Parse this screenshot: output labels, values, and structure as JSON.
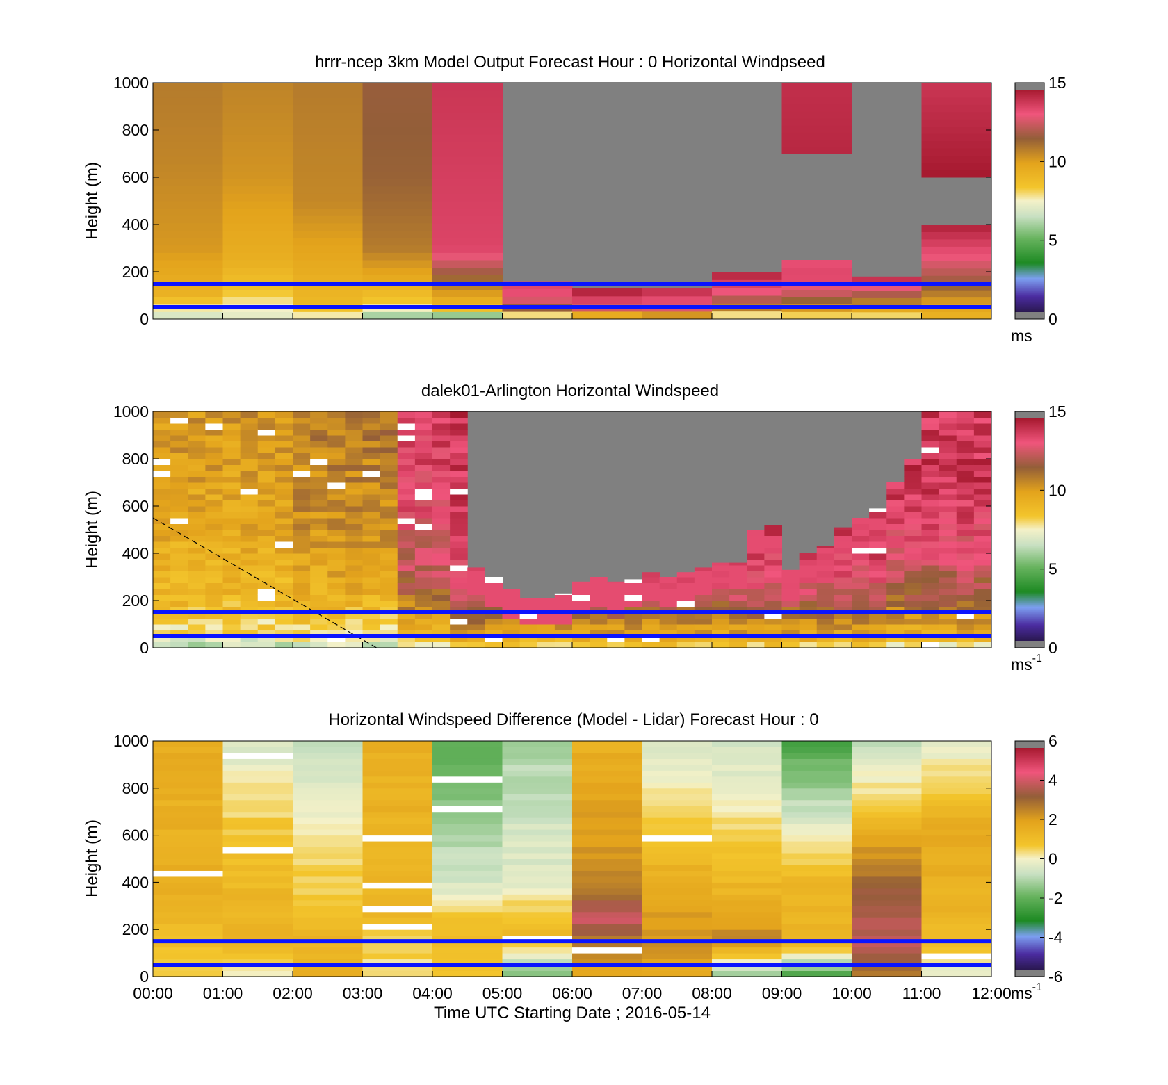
{
  "chart_data": [
    {
      "type": "heatmap",
      "title": "hrrr-ncep 3km Model Output   Forecast Hour : 0 Horizontal Windpseed",
      "ylabel": "Height (m)",
      "xlabel": "",
      "x_range_hours": [
        0,
        12
      ],
      "ylim": [
        0,
        1000
      ],
      "yticks": [
        "0",
        "200",
        "400",
        "600",
        "800",
        "1000"
      ],
      "reference_lines_m": [
        50,
        150
      ],
      "grey_region_rows": [
        {
          "x_from_h": 5,
          "x_to_h": 9,
          "y_from": 160,
          "y_to": 1000
        },
        {
          "x_from_h": 10,
          "x_to_h": 11,
          "y_from": 180,
          "y_to": 1000
        },
        {
          "x_from_h": 11,
          "x_to_h": 12,
          "y_from": 400,
          "y_to": 600
        }
      ],
      "colorbar": {
        "min": 0,
        "max": 15,
        "ticks": [
          "0",
          "5",
          "10",
          "15"
        ],
        "unit": "ms",
        "unit_sup": ""
      },
      "columns": [
        {
          "hour": 0,
          "profile": [
            [
              0,
              6.5
            ],
            [
              40,
              7.5
            ],
            [
              100,
              9.3
            ],
            [
              300,
              10.3
            ],
            [
              700,
              10.8
            ],
            [
              1000,
              11.0
            ]
          ]
        },
        {
          "hour": 1,
          "profile": [
            [
              0,
              7.0
            ],
            [
              60,
              7.6
            ],
            [
              120,
              8.5
            ],
            [
              250,
              9.5
            ],
            [
              600,
              10.4
            ],
            [
              1000,
              10.8
            ]
          ]
        },
        {
          "hour": 2,
          "profile": [
            [
              0,
              7.2
            ],
            [
              60,
              9.0
            ],
            [
              200,
              9.6
            ],
            [
              500,
              10.7
            ],
            [
              1000,
              11.0
            ]
          ]
        },
        {
          "hour": 3,
          "profile": [
            [
              0,
              5.2
            ],
            [
              60,
              8.2
            ],
            [
              150,
              9.5
            ],
            [
              300,
              11.0
            ],
            [
              600,
              11.6
            ],
            [
              1000,
              11.8
            ]
          ]
        },
        {
          "hour": 4,
          "profile": [
            [
              0,
              4.2
            ],
            [
              50,
              9.0
            ],
            [
              200,
              12.0
            ],
            [
              300,
              13.8
            ],
            [
              1000,
              14.2
            ]
          ]
        },
        {
          "hour": 5,
          "profile": [
            [
              0,
              6.0
            ],
            [
              50,
              12.0
            ],
            [
              100,
              13.5
            ],
            [
              160,
              13.8
            ]
          ]
        },
        {
          "hour": 6,
          "profile": [
            [
              0,
              7.6
            ],
            [
              40,
              12.5
            ],
            [
              100,
              14.5
            ],
            [
              130,
              14.8
            ]
          ]
        },
        {
          "hour": 7,
          "profile": [
            [
              0,
              8.7
            ],
            [
              40,
              12.8
            ],
            [
              100,
              14.0
            ],
            [
              130,
              14.5
            ]
          ]
        },
        {
          "hour": 8,
          "profile": [
            [
              0,
              6.0
            ],
            [
              40,
              10.5
            ],
            [
              100,
              13.0
            ],
            [
              200,
              14.8
            ]
          ]
        },
        {
          "hour": 9,
          "profile": [
            [
              0,
              7.0
            ],
            [
              40,
              10.0
            ],
            [
              100,
              12.5
            ],
            [
              180,
              13.8
            ],
            [
              250,
              13.5
            ]
          ]
        },
        {
          "hour": 9,
          "y_from": 700,
          "profile": [
            [
              700,
              14.6
            ],
            [
              1000,
              14.4
            ]
          ]
        },
        {
          "hour": 10,
          "profile": [
            [
              0,
              7.2
            ],
            [
              40,
              9.5
            ],
            [
              100,
              12.0
            ],
            [
              180,
              14.8
            ]
          ]
        },
        {
          "hour": 11,
          "profile": [
            [
              0,
              9.2
            ],
            [
              60,
              10.0
            ],
            [
              150,
              11.8
            ],
            [
              280,
              13.5
            ],
            [
              400,
              14.8
            ]
          ]
        },
        {
          "hour": 11,
          "y_from": 600,
          "profile": [
            [
              600,
              15.0
            ],
            [
              700,
              14.8
            ],
            [
              800,
              14.6
            ],
            [
              1000,
              14.2
            ]
          ]
        }
      ]
    },
    {
      "type": "heatmap",
      "title": "dalek01-Arlington  Horizontal Windspeed",
      "ylabel": "Height (m)",
      "xlabel": "",
      "x_range_hours": [
        0,
        12
      ],
      "ylim": [
        0,
        1000
      ],
      "yticks": [
        "0",
        "200",
        "400",
        "600",
        "800",
        "1000"
      ],
      "reference_lines_m": [
        50,
        150
      ],
      "dashed_line": {
        "from": [
          0,
          550
        ],
        "to": [
          3.2,
          0
        ]
      },
      "colorbar": {
        "min": 0,
        "max": 15,
        "ticks": [
          "0",
          "5",
          "10",
          "15"
        ],
        "unit": "ms",
        "unit_sup": "-1"
      },
      "column_width_hours": 0.25,
      "columns_top": [
        {
          "start_h": 0.0,
          "grey_above": 1000
        },
        {
          "start_h": 4.25,
          "grey_above": 1000
        },
        {
          "start_h": 4.5,
          "grey_above": 340
        },
        {
          "start_h": 4.75,
          "grey_above": 300
        },
        {
          "start_h": 5.0,
          "grey_above": 250
        },
        {
          "start_h": 5.25,
          "grey_above": 210
        },
        {
          "start_h": 5.5,
          "grey_above": 210
        },
        {
          "start_h": 5.75,
          "grey_above": 230
        },
        {
          "start_h": 6.0,
          "grey_above": 280
        },
        {
          "start_h": 6.25,
          "grey_above": 300
        },
        {
          "start_h": 6.5,
          "grey_above": 280
        },
        {
          "start_h": 6.75,
          "grey_above": 290
        },
        {
          "start_h": 7.0,
          "grey_above": 320
        },
        {
          "start_h": 7.25,
          "grey_above": 300
        },
        {
          "start_h": 7.5,
          "grey_above": 320
        },
        {
          "start_h": 7.75,
          "grey_above": 340
        },
        {
          "start_h": 8.0,
          "grey_above": 360
        },
        {
          "start_h": 8.25,
          "grey_above": 360
        },
        {
          "start_h": 8.5,
          "grey_above": 500
        },
        {
          "start_h": 8.75,
          "grey_above": 520
        },
        {
          "start_h": 9.0,
          "grey_above": 330
        },
        {
          "start_h": 9.25,
          "grey_above": 400
        },
        {
          "start_h": 9.5,
          "grey_above": 430
        },
        {
          "start_h": 9.75,
          "grey_above": 510
        },
        {
          "start_h": 10.0,
          "grey_above": 550
        },
        {
          "start_h": 10.25,
          "grey_above": 590
        },
        {
          "start_h": 10.5,
          "grey_above": 700
        },
        {
          "start_h": 10.75,
          "grey_above": 800
        },
        {
          "start_h": 11.0,
          "grey_above": 1000
        }
      ]
    },
    {
      "type": "heatmap",
      "title": "Horizontal Windspeed Difference (Model - Lidar) Forecast Hour : 0",
      "ylabel": "Height (m)",
      "xlabel": "Time UTC  Starting Date ; 2016-05-14",
      "x_range_hours": [
        0,
        12
      ],
      "xticks": [
        "00:00",
        "01:00",
        "02:00",
        "03:00",
        "04:00",
        "05:00",
        "06:00",
        "07:00",
        "08:00",
        "09:00",
        "10:00",
        "11:00",
        "12:00"
      ],
      "ylim": [
        0,
        1000
      ],
      "yticks": [
        "0",
        "200",
        "400",
        "600",
        "800",
        "1000"
      ],
      "reference_lines_m": [
        50,
        150
      ],
      "colorbar": {
        "min": -6,
        "max": 6,
        "ticks": [
          "-6",
          "-4",
          "-2",
          "0",
          "2",
          "4",
          "6"
        ],
        "unit": "ms",
        "unit_sup": "-1"
      },
      "columns": [
        {
          "hour": 0,
          "profile": [
            [
              0,
              0.4
            ],
            [
              150,
              1.0
            ],
            [
              300,
              1.5
            ],
            [
              1000,
              1.6
            ]
          ]
        },
        {
          "hour": 1,
          "profile": [
            [
              0,
              -0.2
            ],
            [
              150,
              1.6
            ],
            [
              600,
              0.8
            ],
            [
              1000,
              -0.5
            ]
          ]
        },
        {
          "hour": 2,
          "profile": [
            [
              0,
              1.4
            ],
            [
              160,
              1.4
            ],
            [
              300,
              0.8
            ],
            [
              1000,
              -0.8
            ]
          ]
        },
        {
          "hour": 3,
          "profile": [
            [
              0,
              0.2
            ],
            [
              200,
              0.8
            ],
            [
              300,
              1.4
            ],
            [
              1000,
              1.5
            ]
          ]
        },
        {
          "hour": 4,
          "profile": [
            [
              0,
              0.8
            ],
            [
              200,
              1.2
            ],
            [
              400,
              -0.6
            ],
            [
              1000,
              -2.4
            ]
          ]
        },
        {
          "hour": 5,
          "profile": [
            [
              0,
              -2.0
            ],
            [
              180,
              1.3
            ],
            [
              400,
              -0.3
            ],
            [
              1000,
              -1.2
            ]
          ]
        },
        {
          "hour": 6,
          "profile": [
            [
              0,
              1.8
            ],
            [
              150,
              2.8
            ],
            [
              250,
              4.3
            ],
            [
              400,
              2.5
            ],
            [
              1000,
              1.5
            ]
          ]
        },
        {
          "hour": 7,
          "profile": [
            [
              0,
              1.5
            ],
            [
              100,
              2.5
            ],
            [
              300,
              2.0
            ],
            [
              1000,
              -0.6
            ]
          ]
        },
        {
          "hour": 8,
          "profile": [
            [
              0,
              -1.8
            ],
            [
              150,
              2.6
            ],
            [
              300,
              1.6
            ],
            [
              1000,
              -0.8
            ]
          ]
        },
        {
          "hour": 9,
          "profile": [
            [
              0,
              -2.5
            ],
            [
              150,
              1.5
            ],
            [
              400,
              1.2
            ],
            [
              1000,
              -2.6
            ]
          ]
        },
        {
          "hour": 10,
          "profile": [
            [
              0,
              2.8
            ],
            [
              150,
              4.0
            ],
            [
              400,
              3.2
            ],
            [
              700,
              1.0
            ],
            [
              1000,
              -1.2
            ]
          ]
        },
        {
          "hour": 11,
          "profile": [
            [
              0,
              -0.5
            ],
            [
              150,
              1.2
            ],
            [
              600,
              1.8
            ],
            [
              1000,
              -0.5
            ]
          ]
        }
      ]
    }
  ]
}
